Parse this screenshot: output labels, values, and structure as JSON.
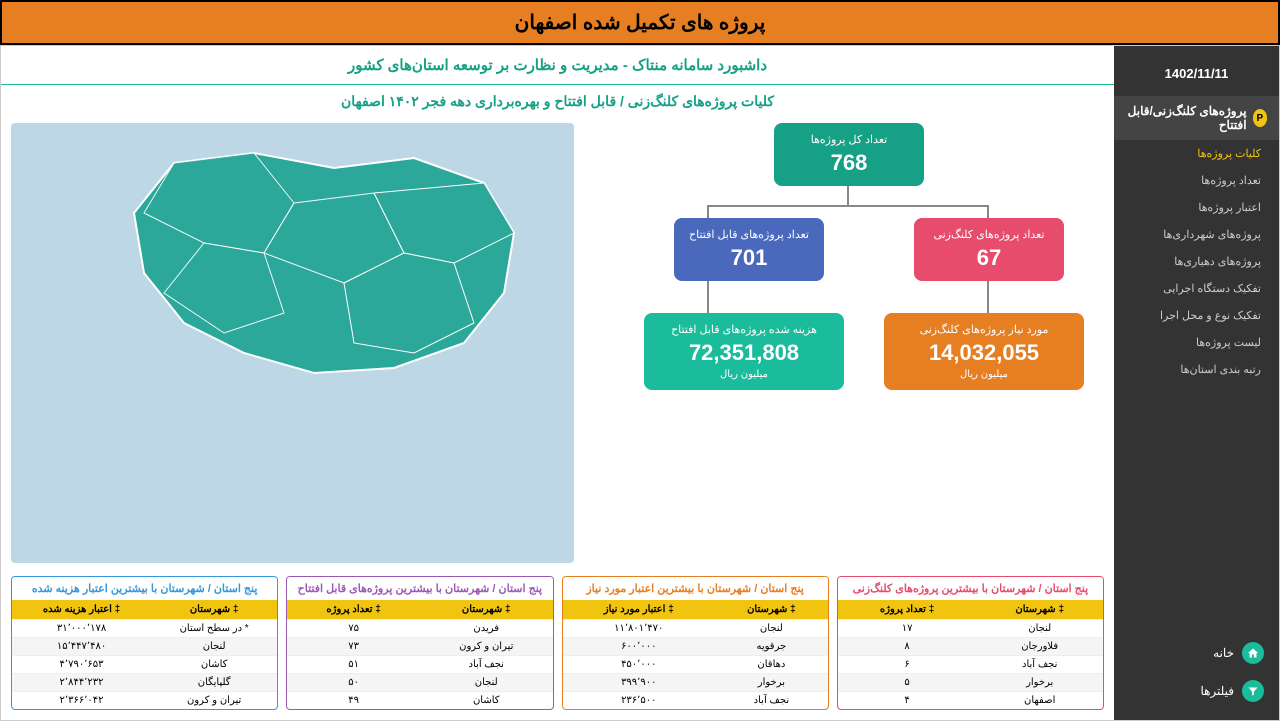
{
  "page_title": "پروژه های تکمیل شده اصفهان",
  "sidebar": {
    "date": "1402/11/11",
    "section_header": "پروژه‌های کلنگ‌زنی/قابل افتتاح",
    "section_badge": "P",
    "items": [
      {
        "label": "کلیات پروژه‌ها",
        "active": true
      },
      {
        "label": "تعداد پروژه‌ها",
        "active": false
      },
      {
        "label": "اعتبار پروژه‌ها",
        "active": false
      },
      {
        "label": "پروژه‌های شهرداری‌ها",
        "active": false
      },
      {
        "label": "پروژه‌های دهیاری‌ها",
        "active": false
      },
      {
        "label": "تفکیک دستگاه اجرایی",
        "active": false
      },
      {
        "label": "تفکیک نوع و محل اجرا",
        "active": false
      },
      {
        "label": "لیست پروژه‌ها",
        "active": false
      },
      {
        "label": "رتبه بندی استان‌ها",
        "active": false
      }
    ],
    "footer": [
      {
        "label": "خانه",
        "icon": "home"
      },
      {
        "label": "فیلترها",
        "icon": "filter"
      }
    ]
  },
  "dashboard": {
    "header": "داشبورد سامانه منتاک - مدیریت و نظارت بر توسعه استان‌های کشور",
    "sub_header": "کلیات پروژه‌های کلنگ‌زنی / قابل افتتاح و بهره‌برداری  دهه فجر ۱۴۰۲  اصفهان"
  },
  "tree": {
    "total": {
      "label": "تعداد کل پروژه‌ها",
      "value": "768",
      "color": "#16a085"
    },
    "pink": {
      "label": "تعداد پروژه‌های کلنگ‌زنی",
      "value": "67",
      "color": "#e74c6c"
    },
    "blue": {
      "label": "تعداد پروژه‌های قابل افتتاح",
      "value": "701",
      "color": "#4a69bd"
    },
    "orange": {
      "label": "مورد نیاز پروژه‌های کلنگ‌زنی",
      "value": "14,032,055",
      "unit": "میلیون ریال",
      "color": "#e67e22"
    },
    "teal": {
      "label": "هزینه شده پروژه‌های قابل افتتاح",
      "value": "72,351,808",
      "unit": "میلیون ریال",
      "color": "#1abc9c"
    }
  },
  "tables": [
    {
      "title": "پنج استان / شهرستان با بیشترین پروژه‌های کلنگ‌زنی",
      "color_class": "pink",
      "columns": [
        "شهرستان",
        "تعداد پروژه"
      ],
      "rows": [
        [
          "لنجان",
          "۱۷"
        ],
        [
          "فلاورجان",
          "۸"
        ],
        [
          "نجف آباد",
          "۶"
        ],
        [
          "برخوار",
          "۵"
        ],
        [
          "اصفهان",
          "۴"
        ]
      ]
    },
    {
      "title": "پنج استان / شهرستان با بیشترین اعتبار مورد نیاز",
      "color_class": "orange",
      "columns": [
        "شهرستان",
        "اعتبار مورد نیاز"
      ],
      "rows": [
        [
          "لنجان",
          "۱۱٬۸۰۱٬۴۷۰"
        ],
        [
          "جرقویه",
          "۶۰۰٬۰۰۰"
        ],
        [
          "دهاقان",
          "۴۵۰٬۰۰۰"
        ],
        [
          "برخوار",
          "۳۹۹٬۹۰۰"
        ],
        [
          "نجف آباد",
          "۲۳۶٬۵۰۰"
        ]
      ]
    },
    {
      "title": "پنج استان / شهرستان با بیشترین پروژه‌های قابل افتتاح",
      "color_class": "purple",
      "columns": [
        "شهرستان",
        "تعداد پروژه"
      ],
      "rows": [
        [
          "فریدن",
          "۷۵"
        ],
        [
          "تیران و کرون",
          "۷۳"
        ],
        [
          "نجف آباد",
          "۵۱"
        ],
        [
          "لنجان",
          "۵۰"
        ],
        [
          "کاشان",
          "۴۹"
        ]
      ]
    },
    {
      "title": "پنج استان / شهرستان با بیشترین اعتبار هزینه شده",
      "color_class": "blue",
      "columns": [
        "شهرستان",
        "اعتبار هزینه شده"
      ],
      "rows": [
        [
          "* در سطح استان",
          "۳۱٬۰۰۰٬۱۷۸"
        ],
        [
          "لنجان",
          "۱۵٬۴۴۷٬۴۸۰"
        ],
        [
          "کاشان",
          "۴٬۷۹۰٬۶۵۳"
        ],
        [
          "گلپایگان",
          "۲٬۸۴۴٬۲۳۲"
        ],
        [
          "تیران و کرون",
          "۲٬۳۶۶٬۰۴۲"
        ]
      ]
    }
  ],
  "colors": {
    "page_title_bg": "#e67e22",
    "sidebar_bg": "#333333",
    "accent_yellow": "#f1c40f",
    "accent_teal": "#1abc9c",
    "map_bg": "#bdd7e7",
    "map_fill": "#2ba89a"
  }
}
